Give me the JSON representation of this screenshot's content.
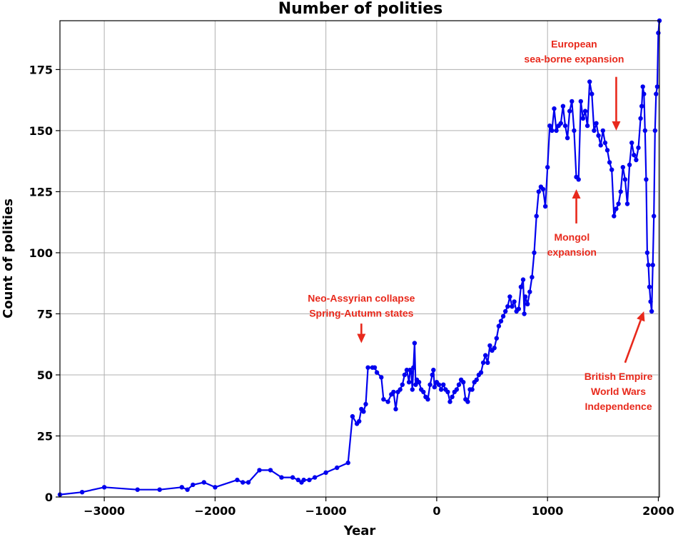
{
  "chart_data": {
    "type": "line",
    "title": "Number of polities",
    "xlabel": "Year",
    "ylabel": "Count of polities",
    "xlim": [
      -3400,
      2010
    ],
    "ylim": [
      0,
      195
    ],
    "xticks": [
      -3000,
      -2000,
      -1000,
      0,
      1000,
      2000
    ],
    "xtick_labels": [
      "−3000",
      "−2000",
      "−1000",
      "0",
      "1000",
      "2000"
    ],
    "yticks": [
      0,
      25,
      50,
      75,
      100,
      125,
      150,
      175
    ],
    "ytick_labels": [
      "0",
      "25",
      "50",
      "75",
      "100",
      "125",
      "150",
      "175"
    ],
    "grid": true,
    "line_color": "#0000ee",
    "annotation_color": "#e8291c",
    "series": [
      {
        "name": "",
        "points": [
          [
            -3400,
            1
          ],
          [
            -3200,
            2
          ],
          [
            -3000,
            4
          ],
          [
            -2700,
            3
          ],
          [
            -2500,
            3
          ],
          [
            -2300,
            4
          ],
          [
            -2250,
            3
          ],
          [
            -2200,
            5
          ],
          [
            -2100,
            6
          ],
          [
            -2000,
            4
          ],
          [
            -1800,
            7
          ],
          [
            -1750,
            6
          ],
          [
            -1700,
            6
          ],
          [
            -1600,
            11
          ],
          [
            -1500,
            11
          ],
          [
            -1400,
            8
          ],
          [
            -1300,
            8
          ],
          [
            -1250,
            7
          ],
          [
            -1220,
            6
          ],
          [
            -1200,
            7
          ],
          [
            -1150,
            7
          ],
          [
            -1100,
            8
          ],
          [
            -1000,
            10
          ],
          [
            -900,
            12
          ],
          [
            -800,
            14
          ],
          [
            -760,
            33
          ],
          [
            -720,
            30
          ],
          [
            -700,
            31
          ],
          [
            -680,
            36
          ],
          [
            -660,
            35
          ],
          [
            -640,
            38
          ],
          [
            -620,
            53
          ],
          [
            -580,
            53
          ],
          [
            -560,
            53
          ],
          [
            -540,
            51
          ],
          [
            -500,
            49
          ],
          [
            -480,
            40
          ],
          [
            -440,
            39
          ],
          [
            -410,
            42
          ],
          [
            -390,
            43
          ],
          [
            -370,
            36
          ],
          [
            -350,
            43
          ],
          [
            -330,
            44
          ],
          [
            -310,
            46
          ],
          [
            -290,
            50
          ],
          [
            -270,
            52
          ],
          [
            -250,
            47
          ],
          [
            -240,
            52
          ],
          [
            -230,
            51
          ],
          [
            -220,
            44
          ],
          [
            -210,
            53
          ],
          [
            -200,
            63
          ],
          [
            -190,
            46
          ],
          [
            -180,
            48
          ],
          [
            -160,
            47
          ],
          [
            -140,
            44
          ],
          [
            -120,
            43
          ],
          [
            -100,
            41
          ],
          [
            -80,
            40
          ],
          [
            -60,
            46
          ],
          [
            -40,
            50
          ],
          [
            -30,
            52
          ],
          [
            -20,
            45
          ],
          [
            0,
            47
          ],
          [
            20,
            46
          ],
          [
            40,
            44
          ],
          [
            60,
            46
          ],
          [
            80,
            44
          ],
          [
            100,
            43
          ],
          [
            120,
            39
          ],
          [
            140,
            41
          ],
          [
            160,
            43
          ],
          [
            180,
            44
          ],
          [
            200,
            46
          ],
          [
            220,
            48
          ],
          [
            240,
            47
          ],
          [
            260,
            40
          ],
          [
            280,
            39
          ],
          [
            300,
            44
          ],
          [
            320,
            44
          ],
          [
            340,
            47
          ],
          [
            360,
            48
          ],
          [
            380,
            50
          ],
          [
            400,
            51
          ],
          [
            420,
            55
          ],
          [
            440,
            58
          ],
          [
            460,
            55
          ],
          [
            480,
            62
          ],
          [
            500,
            60
          ],
          [
            520,
            61
          ],
          [
            540,
            65
          ],
          [
            560,
            70
          ],
          [
            580,
            72
          ],
          [
            600,
            74
          ],
          [
            620,
            76
          ],
          [
            640,
            78
          ],
          [
            660,
            82
          ],
          [
            680,
            78
          ],
          [
            700,
            80
          ],
          [
            720,
            76
          ],
          [
            740,
            77
          ],
          [
            760,
            86
          ],
          [
            780,
            89
          ],
          [
            790,
            75
          ],
          [
            800,
            82
          ],
          [
            820,
            79
          ],
          [
            840,
            84
          ],
          [
            860,
            90
          ],
          [
            880,
            100
          ],
          [
            900,
            115
          ],
          [
            920,
            125
          ],
          [
            940,
            127
          ],
          [
            960,
            126
          ],
          [
            980,
            119
          ],
          [
            1000,
            135
          ],
          [
            1020,
            152
          ],
          [
            1040,
            150
          ],
          [
            1060,
            159
          ],
          [
            1080,
            150
          ],
          [
            1100,
            152
          ],
          [
            1120,
            153
          ],
          [
            1140,
            160
          ],
          [
            1160,
            152
          ],
          [
            1180,
            147
          ],
          [
            1200,
            158
          ],
          [
            1220,
            162
          ],
          [
            1240,
            150
          ],
          [
            1260,
            131
          ],
          [
            1280,
            130
          ],
          [
            1300,
            162
          ],
          [
            1320,
            155
          ],
          [
            1340,
            158
          ],
          [
            1360,
            152
          ],
          [
            1380,
            170
          ],
          [
            1400,
            165
          ],
          [
            1420,
            150
          ],
          [
            1440,
            153
          ],
          [
            1460,
            148
          ],
          [
            1480,
            144
          ],
          [
            1500,
            150
          ],
          [
            1520,
            145
          ],
          [
            1540,
            142
          ],
          [
            1560,
            137
          ],
          [
            1580,
            134
          ],
          [
            1600,
            115
          ],
          [
            1620,
            118
          ],
          [
            1640,
            120
          ],
          [
            1660,
            125
          ],
          [
            1680,
            135
          ],
          [
            1700,
            130
          ],
          [
            1720,
            120
          ],
          [
            1740,
            136
          ],
          [
            1760,
            145
          ],
          [
            1780,
            140
          ],
          [
            1800,
            138
          ],
          [
            1820,
            143
          ],
          [
            1840,
            155
          ],
          [
            1850,
            160
          ],
          [
            1860,
            168
          ],
          [
            1870,
            165
          ],
          [
            1880,
            150
          ],
          [
            1890,
            130
          ],
          [
            1900,
            100
          ],
          [
            1910,
            95
          ],
          [
            1920,
            86
          ],
          [
            1930,
            80
          ],
          [
            1940,
            76
          ],
          [
            1950,
            95
          ],
          [
            1960,
            115
          ],
          [
            1970,
            150
          ],
          [
            1980,
            165
          ],
          [
            1990,
            168
          ],
          [
            2000,
            190
          ],
          [
            2010,
            195
          ]
        ]
      }
    ],
    "annotations": [
      {
        "lines": [
          "Neo-Assyrian collapse",
          "Spring-Autumn states"
        ],
        "label_x": -680,
        "label_y": 80,
        "arrow_from": [
          -680,
          71
        ],
        "arrow_to": [
          -680,
          63
        ]
      },
      {
        "lines": [
          "Mongol",
          "expansion"
        ],
        "label_x": 1220,
        "label_y": 105,
        "arrow_from": [
          1260,
          112
        ],
        "arrow_to": [
          1260,
          126
        ]
      },
      {
        "lines": [
          "European",
          "sea-borne expansion"
        ],
        "label_x": 1240,
        "label_y": 184,
        "arrow_from": [
          1620,
          172
        ],
        "arrow_to": [
          1620,
          150
        ]
      },
      {
        "lines": [
          "British Empire",
          "World Wars",
          "Independence"
        ],
        "label_x": 1640,
        "label_y": 48,
        "arrow_from": [
          1700,
          55
        ],
        "arrow_to": [
          1870,
          76
        ]
      }
    ]
  }
}
